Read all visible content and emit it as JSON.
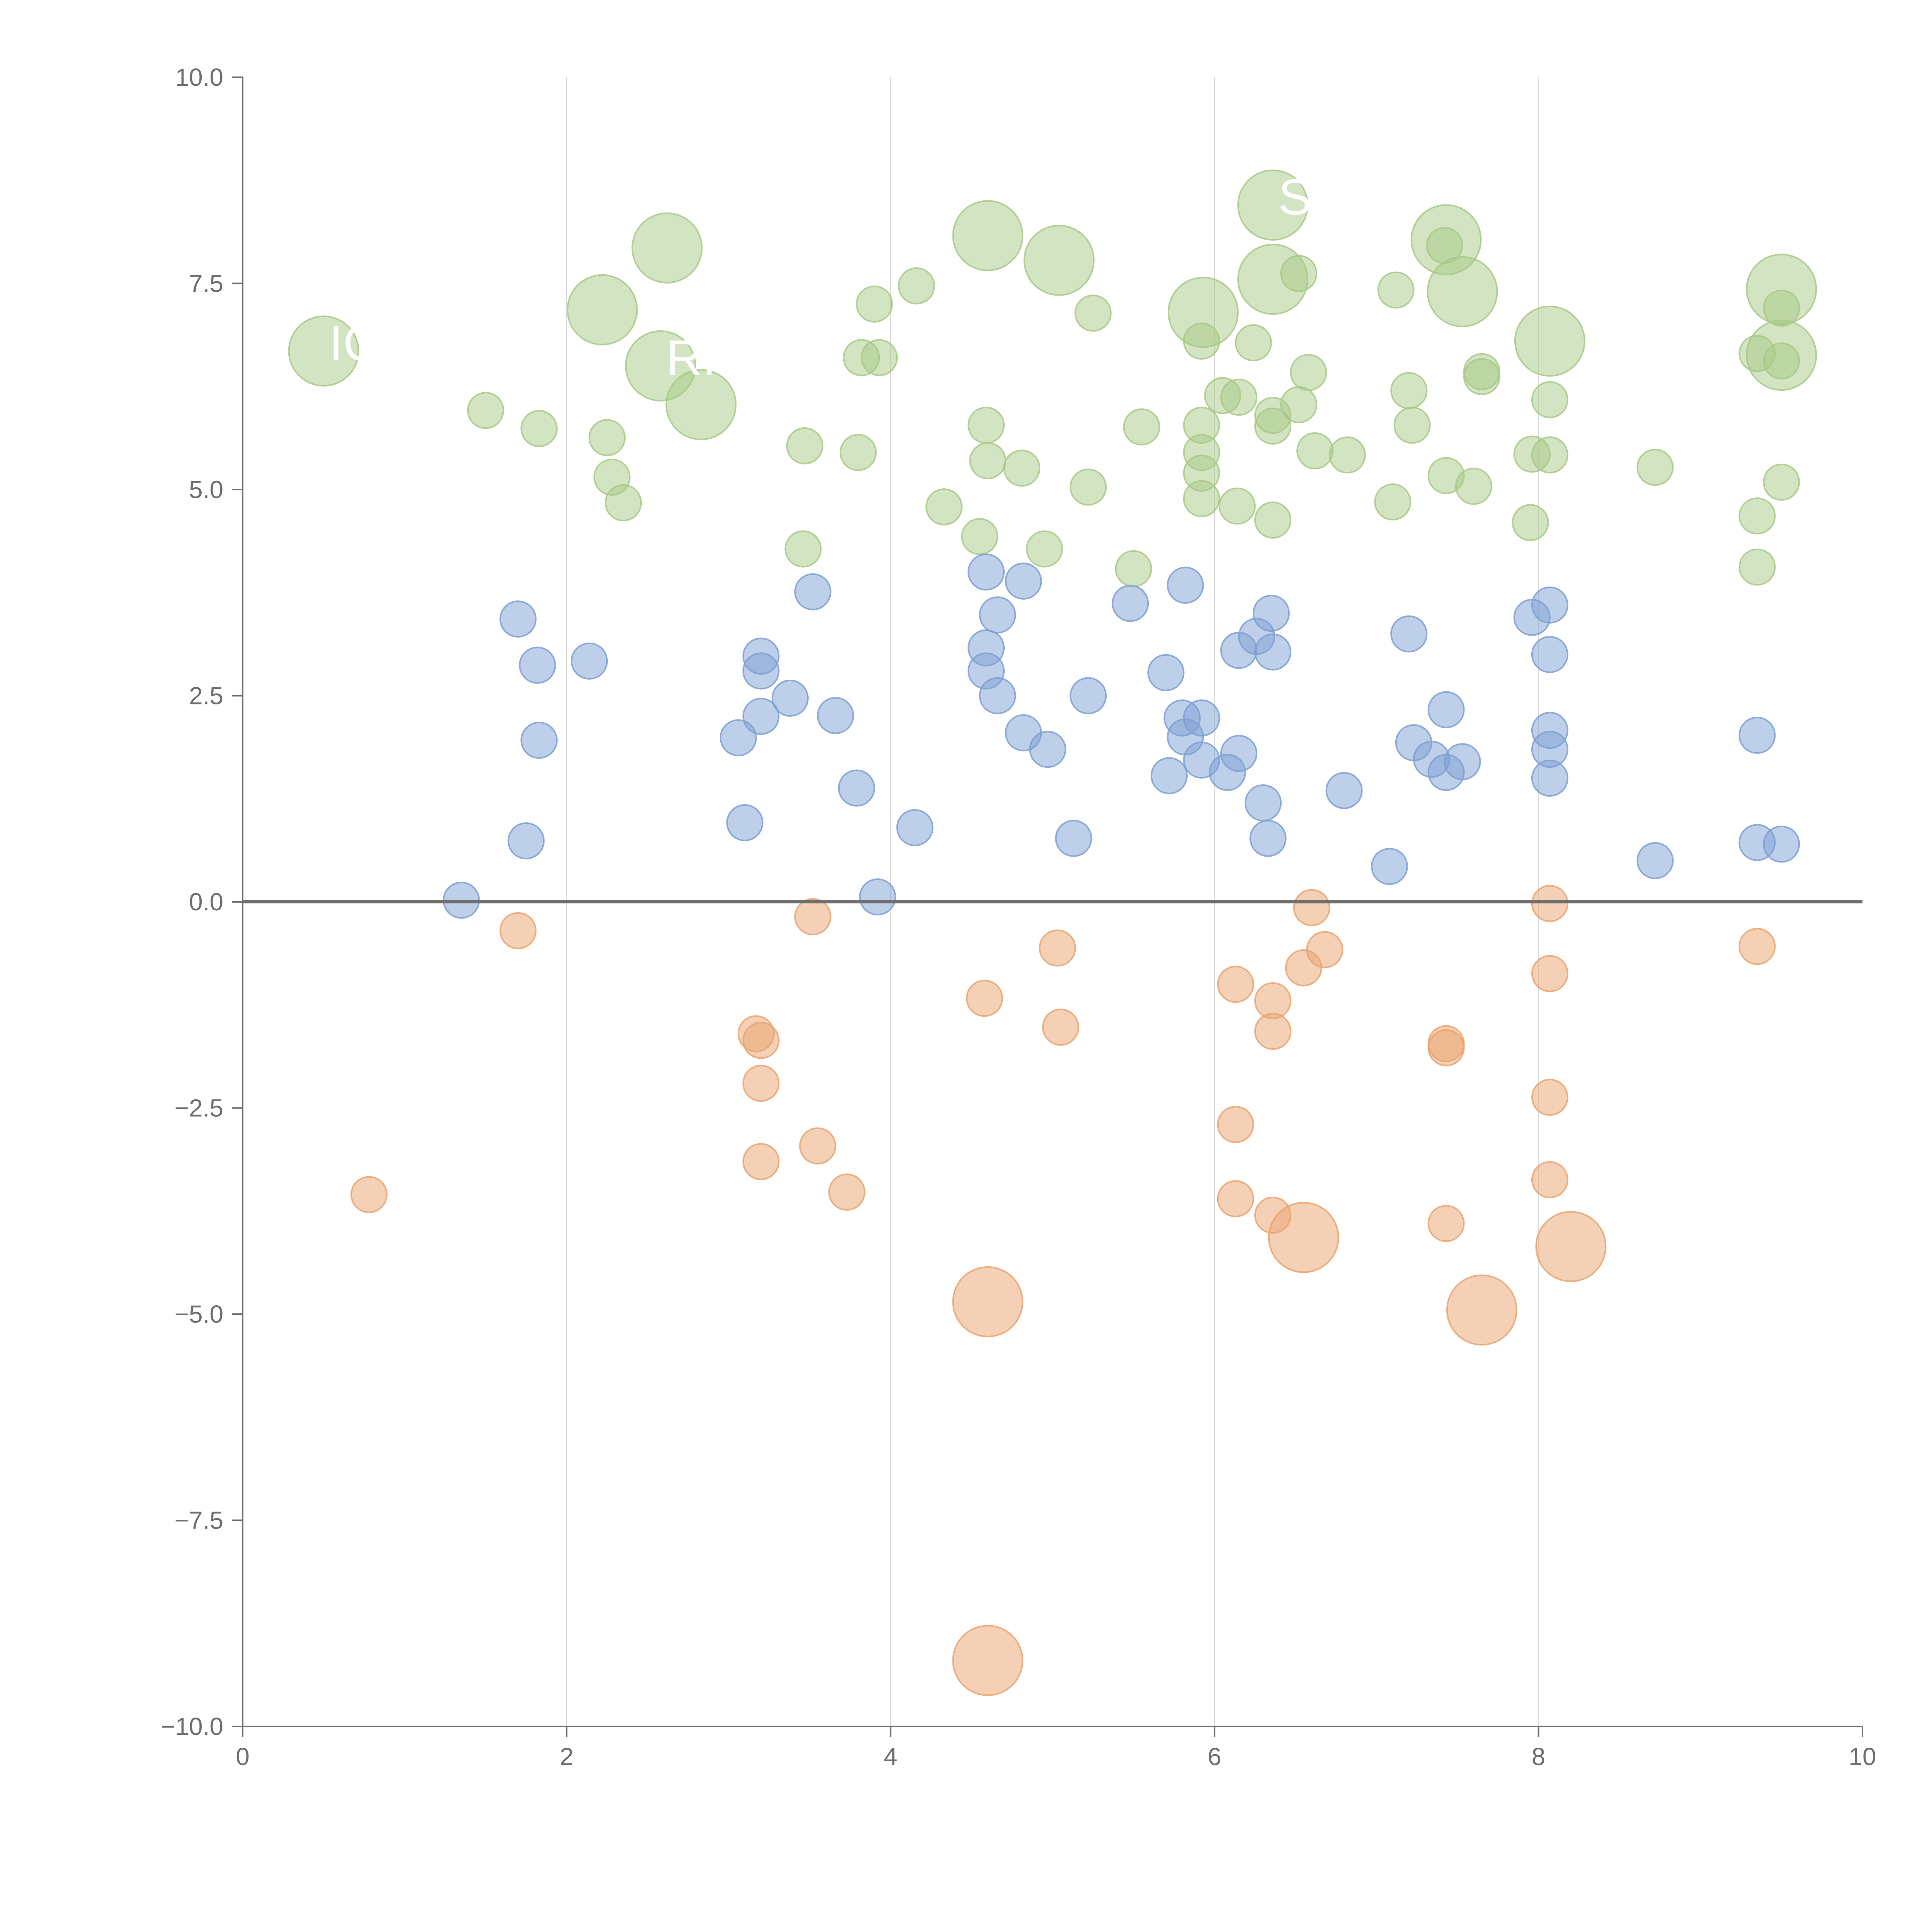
{
  "chart_data": {
    "type": "scatter",
    "title": "",
    "xlabel": "",
    "ylabel": "",
    "xlim": [
      0,
      10
    ],
    "ylim": [
      -10,
      10
    ],
    "x_ticks": [
      0,
      2,
      4,
      6,
      8,
      10
    ],
    "x_tick_labels": [
      "0",
      "2",
      "4",
      "6",
      "8",
      "10"
    ],
    "y_ticks": [
      10,
      7.5,
      5,
      2.5,
      0,
      -2.5,
      -5,
      -7.5,
      -10
    ],
    "y_tick_labels": [
      "10.0",
      "7.5",
      "5.0",
      "2.5",
      "0.0",
      "−2.5",
      "−5.0",
      "−7.5",
      "−10.0"
    ],
    "vertical_gridlines_at": [
      2,
      4,
      6,
      8
    ],
    "zero_line": true,
    "colors": {
      "green": "#a8c986",
      "blue": "#7d9fd3",
      "orange": "#eaa36d",
      "axis": "#6e6e6e",
      "grid": "#d9d9d9",
      "zero_line": "#6e6e6e"
    },
    "size_units": {
      "small": 1,
      "large": 2
    },
    "series": [
      {
        "name": "green",
        "points": [
          [
            0.5,
            6.68,
            2
          ],
          [
            2.22,
            7.18,
            2
          ],
          [
            2.62,
            7.93,
            2
          ],
          [
            2.58,
            6.5,
            2
          ],
          [
            2.83,
            6.03,
            2
          ],
          [
            4.6,
            8.08,
            2
          ],
          [
            5.04,
            7.78,
            2
          ],
          [
            5.93,
            7.15,
            2
          ],
          [
            6.36,
            8.45,
            2
          ],
          [
            6.36,
            7.55,
            2
          ],
          [
            7.43,
            8.03,
            2
          ],
          [
            7.53,
            7.4,
            2
          ],
          [
            8.07,
            6.8,
            2
          ],
          [
            9.5,
            7.43,
            2
          ],
          [
            9.5,
            6.63,
            2
          ],
          [
            1.5,
            5.96,
            1
          ],
          [
            1.83,
            5.74,
            1
          ],
          [
            2.25,
            5.63,
            1
          ],
          [
            2.28,
            5.15,
            1
          ],
          [
            2.35,
            4.84,
            1
          ],
          [
            3.47,
            5.53,
            1
          ],
          [
            3.46,
            4.28,
            1
          ],
          [
            3.8,
            5.45,
            1
          ],
          [
            3.9,
            7.25,
            1
          ],
          [
            3.82,
            6.6,
            1
          ],
          [
            3.93,
            6.6,
            1
          ],
          [
            4.16,
            7.47,
            1
          ],
          [
            4.33,
            4.79,
            1
          ],
          [
            4.55,
            4.43,
            1
          ],
          [
            4.59,
            5.78,
            1
          ],
          [
            4.6,
            5.35,
            1
          ],
          [
            4.81,
            5.26,
            1
          ],
          [
            4.95,
            4.28,
            1
          ],
          [
            5.25,
            7.14,
            1
          ],
          [
            5.22,
            5.03,
            1
          ],
          [
            5.5,
            4.04,
            1
          ],
          [
            5.55,
            5.76,
            1
          ],
          [
            5.92,
            6.8,
            1
          ],
          [
            5.92,
            5.78,
            1
          ],
          [
            5.92,
            5.45,
            1
          ],
          [
            5.92,
            5.2,
            1
          ],
          [
            5.92,
            4.89,
            1
          ],
          [
            6.05,
            6.14,
            1
          ],
          [
            6.15,
            6.12,
            1
          ],
          [
            6.14,
            4.8,
            1
          ],
          [
            6.24,
            6.78,
            1
          ],
          [
            6.36,
            5.9,
            1
          ],
          [
            6.36,
            5.77,
            1
          ],
          [
            6.36,
            4.63,
            1
          ],
          [
            6.52,
            7.62,
            1
          ],
          [
            6.52,
            6.03,
            1
          ],
          [
            6.58,
            6.42,
            1
          ],
          [
            6.62,
            5.47,
            1
          ],
          [
            6.82,
            5.42,
            1
          ],
          [
            7.12,
            7.42,
            1
          ],
          [
            7.2,
            6.2,
            1
          ],
          [
            7.22,
            5.78,
            1
          ],
          [
            7.1,
            4.85,
            1
          ],
          [
            7.42,
            7.96,
            1
          ],
          [
            7.43,
            5.17,
            1
          ],
          [
            7.6,
            5.04,
            1
          ],
          [
            7.65,
            6.43,
            1
          ],
          [
            7.65,
            6.37,
            1
          ],
          [
            7.96,
            5.43,
            1
          ],
          [
            7.95,
            4.6,
            1
          ],
          [
            8.07,
            6.09,
            1
          ],
          [
            8.07,
            5.42,
            1
          ],
          [
            8.72,
            5.27,
            1
          ],
          [
            9.35,
            6.65,
            1
          ],
          [
            9.35,
            4.68,
            1
          ],
          [
            9.35,
            4.06,
            1
          ],
          [
            9.5,
            7.2,
            1
          ],
          [
            9.5,
            6.56,
            1
          ],
          [
            9.5,
            5.09,
            1
          ]
        ]
      },
      {
        "name": "blue",
        "points": [
          [
            1.35,
            0.02,
            1
          ],
          [
            1.7,
            3.43,
            1
          ],
          [
            1.82,
            2.87,
            1
          ],
          [
            1.83,
            1.96,
            1
          ],
          [
            1.75,
            0.74,
            1
          ],
          [
            2.14,
            2.92,
            1
          ],
          [
            3.06,
            1.99,
            1
          ],
          [
            3.1,
            0.96,
            1
          ],
          [
            3.2,
            2.98,
            1
          ],
          [
            3.2,
            2.8,
            1
          ],
          [
            3.2,
            2.25,
            1
          ],
          [
            3.38,
            2.47,
            1
          ],
          [
            3.52,
            3.76,
            1
          ],
          [
            3.66,
            2.26,
            1
          ],
          [
            3.79,
            1.38,
            1
          ],
          [
            3.92,
            0.06,
            1
          ],
          [
            4.15,
            0.9,
            1
          ],
          [
            4.59,
            4.0,
            1
          ],
          [
            4.59,
            3.08,
            1
          ],
          [
            4.59,
            2.8,
            1
          ],
          [
            4.66,
            3.48,
            1
          ],
          [
            4.66,
            2.5,
            1
          ],
          [
            4.82,
            3.89,
            1
          ],
          [
            4.82,
            2.05,
            1
          ],
          [
            4.97,
            1.85,
            1
          ],
          [
            5.13,
            0.77,
            1
          ],
          [
            5.22,
            2.5,
            1
          ],
          [
            5.48,
            3.62,
            1
          ],
          [
            5.7,
            2.78,
            1
          ],
          [
            5.72,
            1.53,
            1
          ],
          [
            5.82,
            3.84,
            1
          ],
          [
            5.8,
            2.23,
            1
          ],
          [
            5.82,
            2.0,
            1
          ],
          [
            5.92,
            2.23,
            1
          ],
          [
            5.92,
            1.72,
            1
          ],
          [
            6.08,
            1.57,
            1
          ],
          [
            6.15,
            3.05,
            1
          ],
          [
            6.15,
            1.8,
            1
          ],
          [
            6.26,
            3.22,
            1
          ],
          [
            6.3,
            1.2,
            1
          ],
          [
            6.33,
            0.77,
            1
          ],
          [
            6.35,
            3.5,
            1
          ],
          [
            6.36,
            3.03,
            1
          ],
          [
            6.8,
            1.35,
            1
          ],
          [
            7.08,
            0.43,
            1
          ],
          [
            7.2,
            3.25,
            1
          ],
          [
            7.23,
            1.93,
            1
          ],
          [
            7.34,
            1.73,
            1
          ],
          [
            7.43,
            1.57,
            1
          ],
          [
            7.43,
            2.33,
            1
          ],
          [
            7.53,
            1.7,
            1
          ],
          [
            7.96,
            3.45,
            1
          ],
          [
            8.07,
            3.6,
            1
          ],
          [
            8.07,
            3.0,
            1
          ],
          [
            8.07,
            2.08,
            1
          ],
          [
            8.07,
            1.85,
            1
          ],
          [
            8.07,
            1.5,
            1
          ],
          [
            8.72,
            0.5,
            1
          ],
          [
            9.35,
            2.02,
            1
          ],
          [
            9.35,
            0.72,
            1
          ],
          [
            9.5,
            0.7,
            1
          ]
        ]
      },
      {
        "name": "orange",
        "points": [
          [
            0.78,
            -3.55,
            1
          ],
          [
            1.7,
            -0.35,
            1
          ],
          [
            3.17,
            -1.6,
            1
          ],
          [
            3.2,
            -1.68,
            1
          ],
          [
            3.2,
            -2.2,
            1
          ],
          [
            3.2,
            -3.15,
            1
          ],
          [
            3.52,
            -0.18,
            1
          ],
          [
            3.55,
            -2.96,
            1
          ],
          [
            3.73,
            -3.52,
            1
          ],
          [
            4.58,
            -1.17,
            1
          ],
          [
            4.6,
            -4.85,
            2
          ],
          [
            4.6,
            -9.2,
            2
          ],
          [
            5.03,
            -0.56,
            1
          ],
          [
            5.05,
            -1.52,
            1
          ],
          [
            6.13,
            -1.0,
            1
          ],
          [
            6.13,
            -2.7,
            1
          ],
          [
            6.13,
            -3.6,
            1
          ],
          [
            6.36,
            -1.2,
            1
          ],
          [
            6.36,
            -1.57,
            1
          ],
          [
            6.36,
            -3.8,
            1
          ],
          [
            6.55,
            -0.8,
            1
          ],
          [
            6.6,
            -0.07,
            1
          ],
          [
            6.68,
            -0.58,
            1
          ],
          [
            6.55,
            -4.07,
            2
          ],
          [
            7.43,
            -1.72,
            1
          ],
          [
            7.43,
            -1.77,
            1
          ],
          [
            7.43,
            -3.9,
            1
          ],
          [
            7.65,
            -4.95,
            2
          ],
          [
            8.07,
            -0.02,
            1
          ],
          [
            8.07,
            -0.87,
            1
          ],
          [
            8.07,
            -2.37,
            1
          ],
          [
            8.07,
            -3.37,
            1
          ],
          [
            8.2,
            -4.18,
            2
          ],
          [
            9.35,
            -0.54,
            1
          ]
        ]
      }
    ],
    "annotations": [
      {
        "text": "IC",
        "x": 0.5,
        "y": 6.68,
        "series": "green"
      },
      {
        "text": "RI",
        "x": 2.58,
        "y": 6.5,
        "series": "green"
      },
      {
        "text": "SK",
        "x": 6.36,
        "y": 8.45,
        "series": "green"
      }
    ]
  }
}
